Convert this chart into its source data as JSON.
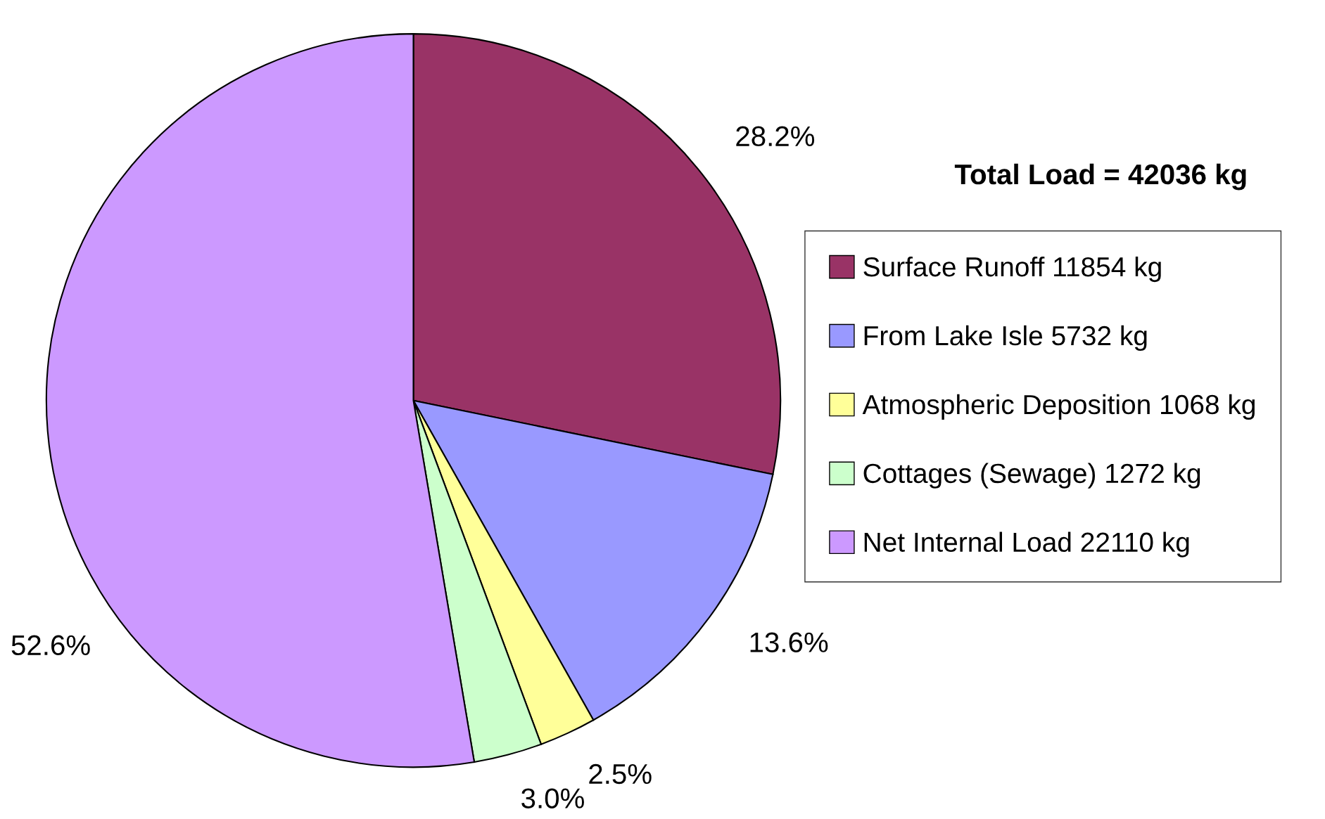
{
  "chart_data": {
    "type": "pie",
    "title": "Total Load = 42036 kg",
    "categories": [
      "Surface Runoff 11854 kg",
      "From Lake Isle 5732 kg",
      "Atmospheric Deposition 1068 kg",
      "Cottages (Sewage) 1272 kg",
      "Net Internal Load 22110 kg"
    ],
    "values": [
      28.2,
      13.6,
      2.5,
      3.0,
      52.6
    ],
    "value_labels": [
      "28.2%",
      "13.6%",
      "2.5%",
      "3.0%",
      "52.6%"
    ],
    "colors": [
      "#993366",
      "#9999ff",
      "#ffff99",
      "#ccffcc",
      "#cc99ff"
    ],
    "legend": "right"
  }
}
